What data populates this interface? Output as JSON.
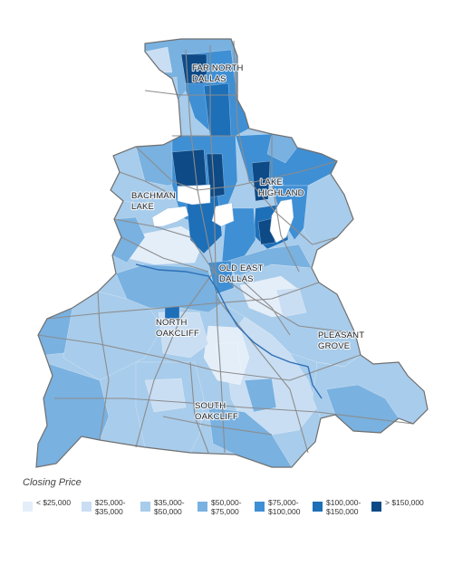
{
  "map": {
    "places": [
      {
        "id": "far-north-dallas",
        "lines": [
          "FAR NORTH",
          "DALLAS"
        ]
      },
      {
        "id": "lake-highland",
        "lines": [
          "LAKE",
          "HIGHLAND"
        ]
      },
      {
        "id": "bachman-lake",
        "lines": [
          "BACHMAN",
          "LAKE"
        ]
      },
      {
        "id": "old-east-dallas",
        "lines": [
          "OLD EAST",
          "DALLAS"
        ]
      },
      {
        "id": "north-oakcliff",
        "lines": [
          "NORTH",
          "OAKCLIFF"
        ]
      },
      {
        "id": "pleasant-grove",
        "lines": [
          "PLEASANT",
          "GROVE"
        ]
      },
      {
        "id": "south-oakcliff",
        "lines": [
          "SOUTH",
          "OAKCLIFF"
        ]
      }
    ],
    "colors": {
      "lt25": "#e4eef9",
      "25to35": "#c9def3",
      "35to50": "#a8cceb",
      "50to75": "#79b1e0",
      "75to100": "#3f8fd4",
      "100to150": "#1d6fb8",
      "gt150": "#0d4a86",
      "road": "#8c8c8c",
      "boundary": "#6f6f6f",
      "water": "#ffffff",
      "river": "#2e6fb6"
    }
  },
  "legend": {
    "title": "Closing Price",
    "items": [
      {
        "label": "< $25,000",
        "color": "#e4eef9"
      },
      {
        "label": "$25,000-\n$35,000",
        "color": "#c9def3"
      },
      {
        "label": "$35,000-\n$50,000",
        "color": "#a8cceb"
      },
      {
        "label": "$50,000-\n$75,000",
        "color": "#79b1e0"
      },
      {
        "label": "$75,000-\n$100,000",
        "color": "#3f8fd4"
      },
      {
        "label": "$100,000-\n$150,000",
        "color": "#1d6fb8"
      },
      {
        "label": "> $150,000",
        "color": "#0d4a86"
      }
    ]
  }
}
